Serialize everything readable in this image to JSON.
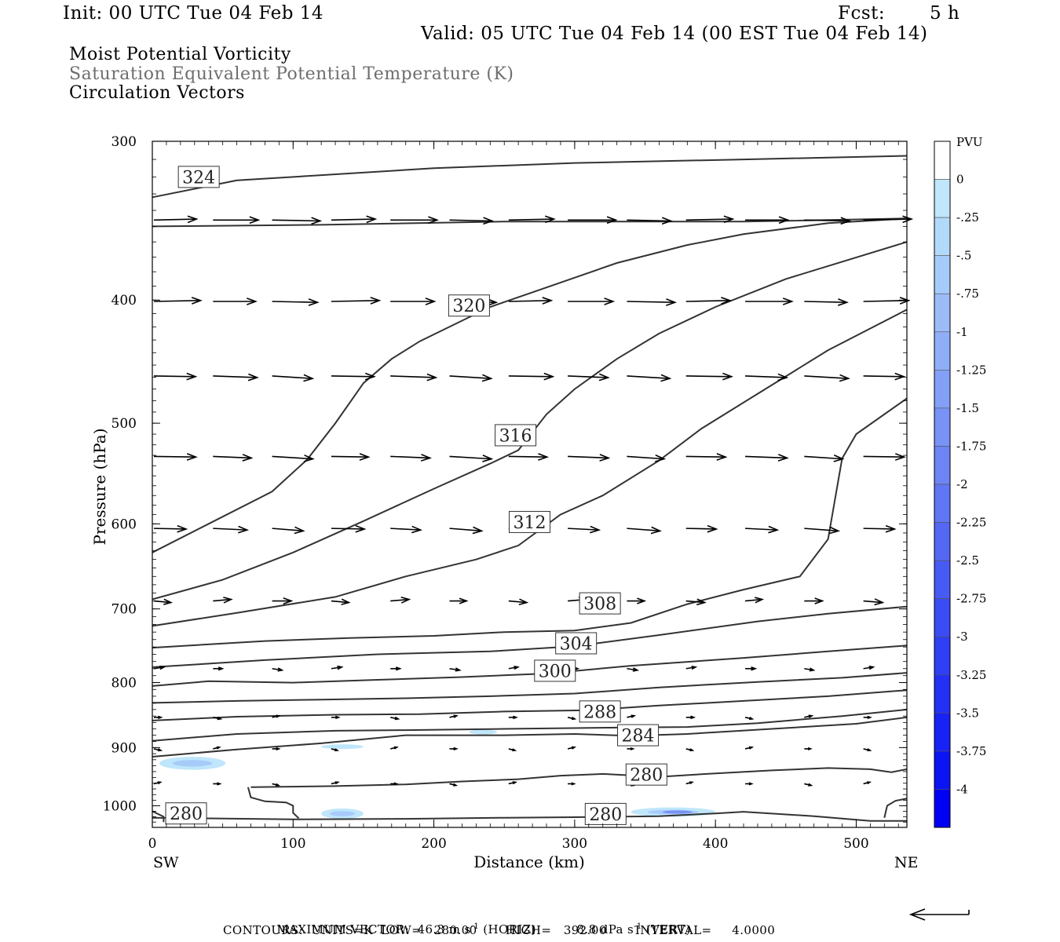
{
  "header": {
    "init": "Init: 00 UTC Tue 04 Feb 14",
    "fcst_label": "Fcst:",
    "fcst_value": "5 h",
    "valid": "Valid: 05 UTC Tue 04 Feb 14 (00 EST Tue 04 Feb 14)"
  },
  "titles": {
    "line1": "Moist Potential Vorticity",
    "line2": "Saturation Equivalent Potential Temperature (K)",
    "line3": "Circulation Vectors"
  },
  "axes": {
    "ylabel": "Pressure (hPa)",
    "xlabel": "Distance (km)",
    "left_end": "SW",
    "right_end": "NE"
  },
  "colorbar": {
    "title": "PVU",
    "levels": [
      "0",
      "-.25",
      "-.5",
      "-.75",
      "-1",
      "-1.25",
      "-1.5",
      "-1.75",
      "-2",
      "-2.25",
      "-2.5",
      "-2.75",
      "-3",
      "-3.25",
      "-3.5",
      "-3.75",
      "-4"
    ],
    "colors": [
      "#ffffff",
      "#bfe6fb",
      "#b3d9fa",
      "#a7cbf9",
      "#9cbcf8",
      "#90aef7",
      "#84a0f6",
      "#7892f5",
      "#6c84f4",
      "#6076f4",
      "#5468f4",
      "#485af4",
      "#3c4cf4",
      "#303ef4",
      "#2430f4",
      "#1822f4",
      "#0c14f4",
      "#0000f4"
    ]
  },
  "footer": {
    "max_vector": "MAXIMUM VECTOR:  46.3 m s",
    "max_vector_exp": "-1",
    "max_vector_mid": " (HORIZ)          8.8 dPa s",
    "max_vector_exp2": "-1",
    "max_vector_end": " (VERT)",
    "contours": "CONTOURS:  UNITS=K  LOW=   280.00       HIGH=   392.00       INTERVAL=     4.0000"
  },
  "chart_data": {
    "type": "contour-cross-section",
    "xlabel": "Distance (km)",
    "ylabel": "Pressure (hPa)",
    "xlim": [
      0,
      536
    ],
    "ylim": [
      1040,
      300
    ],
    "y_log": true,
    "x_ticks": [
      0,
      100,
      200,
      300,
      400,
      500
    ],
    "y_ticks": [
      300,
      400,
      500,
      600,
      700,
      800,
      900,
      1000
    ],
    "contour_labels": [
      {
        "text": "324",
        "x": 33,
        "p": 320
      },
      {
        "text": "320",
        "x": 225,
        "p": 404
      },
      {
        "text": "316",
        "x": 258,
        "p": 511
      },
      {
        "text": "312",
        "x": 268,
        "p": 598
      },
      {
        "text": "308",
        "x": 318,
        "p": 693
      },
      {
        "text": "304",
        "x": 301,
        "p": 745
      },
      {
        "text": "300",
        "x": 286,
        "p": 783
      },
      {
        "text": "288",
        "x": 318,
        "p": 843
      },
      {
        "text": "284",
        "x": 345,
        "p": 880
      },
      {
        "text": "280",
        "x": 351,
        "p": 945
      },
      {
        "text": "280",
        "x": 24,
        "p": 1014
      },
      {
        "text": "280",
        "x": 322,
        "p": 1015
      }
    ],
    "contours": [
      [
        [
          0,
          332
        ],
        [
          60,
          322
        ],
        [
          200,
          315
        ],
        [
          300,
          312
        ],
        [
          420,
          310
        ],
        [
          536,
          308
        ]
      ],
      [
        [
          0,
          350
        ],
        [
          120,
          349
        ],
        [
          250,
          347
        ],
        [
          360,
          347
        ],
        [
          420,
          347
        ],
        [
          536,
          345
        ]
      ],
      [
        [
          0,
          632
        ],
        [
          40,
          600
        ],
        [
          85,
          566
        ],
        [
          110,
          534
        ],
        [
          130,
          500
        ],
        [
          150,
          465
        ],
        [
          170,
          445
        ],
        [
          190,
          431
        ],
        [
          240,
          405
        ],
        [
          280,
          391
        ],
        [
          330,
          374
        ],
        [
          380,
          362
        ],
        [
          420,
          355
        ],
        [
          480,
          348
        ],
        [
          536,
          345
        ]
      ],
      [
        [
          0,
          688
        ],
        [
          50,
          664
        ],
        [
          100,
          632
        ],
        [
          150,
          597
        ],
        [
          200,
          563
        ],
        [
          240,
          538
        ],
        [
          260,
          525
        ],
        [
          280,
          492
        ],
        [
          300,
          470
        ],
        [
          330,
          445
        ],
        [
          360,
          425
        ],
        [
          400,
          405
        ],
        [
          450,
          385
        ],
        [
          536,
          360
        ]
      ],
      [
        [
          0,
          722
        ],
        [
          60,
          705
        ],
        [
          130,
          685
        ],
        [
          180,
          660
        ],
        [
          230,
          640
        ],
        [
          260,
          624
        ],
        [
          290,
          590
        ],
        [
          320,
          570
        ],
        [
          360,
          535
        ],
        [
          390,
          505
        ],
        [
          430,
          474
        ],
        [
          480,
          438
        ],
        [
          536,
          407
        ]
      ],
      [
        [
          0,
          751
        ],
        [
          80,
          742
        ],
        [
          140,
          738
        ],
        [
          200,
          735
        ],
        [
          250,
          730
        ],
        [
          300,
          728
        ],
        [
          340,
          718
        ],
        [
          380,
          694
        ],
        [
          420,
          676
        ],
        [
          460,
          660
        ],
        [
          480,
          617
        ],
        [
          490,
          533
        ],
        [
          500,
          510
        ],
        [
          536,
          478
        ]
      ],
      [
        [
          0,
          778
        ],
        [
          80,
          768
        ],
        [
          160,
          760
        ],
        [
          240,
          756
        ],
        [
          300,
          749
        ],
        [
          360,
          734
        ],
        [
          430,
          716
        ],
        [
          480,
          706
        ],
        [
          536,
          697
        ]
      ],
      [
        [
          0,
          805
        ],
        [
          40,
          798
        ],
        [
          100,
          800
        ],
        [
          160,
          796
        ],
        [
          220,
          792
        ],
        [
          280,
          787
        ],
        [
          340,
          776
        ],
        [
          420,
          765
        ],
        [
          480,
          756
        ],
        [
          536,
          748
        ]
      ],
      [
        [
          0,
          830
        ],
        [
          60,
          827
        ],
        [
          120,
          825
        ],
        [
          180,
          823
        ],
        [
          240,
          820
        ],
        [
          300,
          816
        ],
        [
          360,
          807
        ],
        [
          430,
          799
        ],
        [
          490,
          793
        ],
        [
          536,
          786
        ]
      ],
      [
        [
          0,
          857
        ],
        [
          60,
          851
        ],
        [
          130,
          848
        ],
        [
          190,
          847
        ],
        [
          250,
          843
        ],
        [
          310,
          841
        ],
        [
          360,
          834
        ],
        [
          420,
          827
        ],
        [
          480,
          820
        ],
        [
          536,
          811
        ]
      ],
      [
        [
          0,
          889
        ],
        [
          60,
          878
        ],
        [
          130,
          873
        ],
        [
          180,
          872
        ],
        [
          250,
          870
        ],
        [
          330,
          868
        ],
        [
          380,
          867
        ],
        [
          430,
          861
        ],
        [
          490,
          850
        ],
        [
          536,
          840
        ]
      ],
      [
        [
          0,
          915
        ],
        [
          60,
          903
        ],
        [
          120,
          893
        ],
        [
          180,
          880
        ],
        [
          250,
          880
        ],
        [
          300,
          878
        ],
        [
          340,
          881
        ],
        [
          380,
          878
        ],
        [
          440,
          870
        ],
        [
          500,
          862
        ],
        [
          536,
          852
        ]
      ],
      [
        [
          70,
          967
        ],
        [
          130,
          965
        ],
        [
          180,
          962
        ],
        [
          220,
          957
        ],
        [
          260,
          953
        ],
        [
          290,
          947
        ],
        [
          320,
          944
        ],
        [
          360,
          949
        ],
        [
          400,
          943
        ],
        [
          440,
          938
        ],
        [
          480,
          934
        ],
        [
          510,
          936
        ],
        [
          525,
          941
        ],
        [
          536,
          936
        ]
      ],
      [
        [
          0,
          1022
        ],
        [
          100,
          1025
        ],
        [
          180,
          1024
        ],
        [
          250,
          1022
        ],
        [
          300,
          1021
        ],
        [
          360,
          1019
        ],
        [
          400,
          1014
        ],
        [
          420,
          1011
        ],
        [
          470,
          1019
        ],
        [
          510,
          1028
        ],
        [
          536,
          1028
        ]
      ]
    ],
    "pv_shading": [
      {
        "x": [
          5,
          52
        ],
        "p": [
          915,
          937
        ],
        "pvu_min": -0.5
      },
      {
        "x": [
          120,
          150
        ],
        "p": [
          1005,
          1024
        ],
        "pvu_min": -0.75
      },
      {
        "x": [
          120,
          150
        ],
        "p": [
          895,
          902
        ],
        "pvu_min": -0.25
      },
      {
        "x": [
          225,
          245
        ],
        "p": [
          873,
          877
        ],
        "pvu_min": -0.25
      },
      {
        "x": [
          340,
          400
        ],
        "p": [
          1003,
          1020
        ],
        "pvu_min": -1.75
      }
    ],
    "vector_rows_hpa": [
      346,
      401,
      459,
      531,
      605,
      690,
      780,
      852,
      902,
      961
    ],
    "vector_x_km": [
      0,
      42,
      84,
      126,
      168,
      210,
      252,
      294,
      336,
      378,
      420,
      462,
      504
    ],
    "vector_u_row": [
      5.5,
      5.5,
      5.2,
      4.8,
      3.9,
      2.2,
      1.2,
      0.9,
      0.8,
      0.8
    ],
    "max_vector_horiz": "46.3 m s-1",
    "max_vector_vert": "8.8 dPa s-1",
    "contour_units": "K",
    "contour_low": 280.0,
    "contour_high": 392.0,
    "contour_interval": 4.0
  }
}
